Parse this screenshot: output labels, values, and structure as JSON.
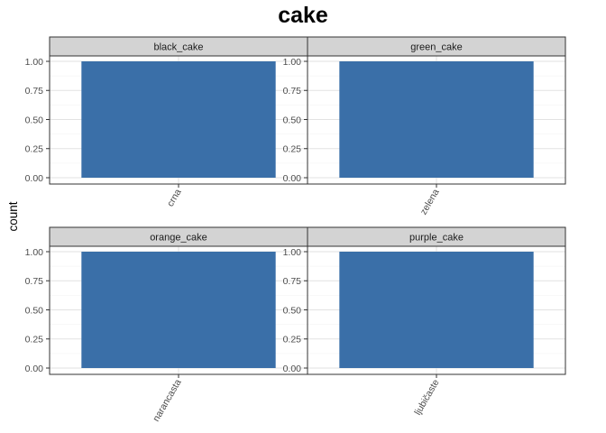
{
  "chart_data": {
    "type": "bar",
    "title": "cake",
    "xlabel": "",
    "ylabel": "count",
    "ylim": [
      0,
      1.2
    ],
    "yticks": [
      0.0,
      0.25,
      0.5,
      0.75,
      1.0
    ],
    "ytick_labels": [
      "0.00",
      "0.25",
      "0.50",
      "0.75",
      "1.00"
    ],
    "grid": true,
    "facet_rows": 2,
    "facet_cols": 2,
    "bar_color": "#3A6FA8",
    "strip_fill": "#D3D3D3",
    "facets": [
      {
        "strip": "black_cake",
        "categories": [
          "crna"
        ],
        "values": [
          1
        ]
      },
      {
        "strip": "green_cake",
        "categories": [
          "zelena"
        ],
        "values": [
          1
        ]
      },
      {
        "strip": "orange_cake",
        "categories": [
          "narancasta"
        ],
        "values": [
          1
        ]
      },
      {
        "strip": "purple_cake",
        "categories": [
          "ljubičaste"
        ],
        "values": [
          1
        ]
      }
    ]
  }
}
